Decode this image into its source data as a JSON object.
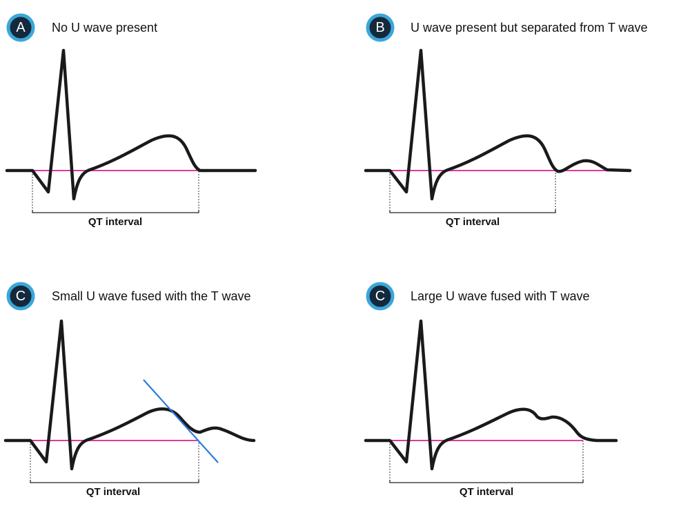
{
  "panels": [
    {
      "badge": "A",
      "title": "No U wave present",
      "interval_label": "QT interval"
    },
    {
      "badge": "B",
      "title": "U wave present but separated from T wave",
      "interval_label": "QT interval"
    },
    {
      "badge": "C",
      "title": "Small U wave fused with the T wave",
      "interval_label": "QT interval"
    },
    {
      "badge": "C",
      "title": "Large U wave fused with T wave",
      "interval_label": "QT interval"
    }
  ]
}
